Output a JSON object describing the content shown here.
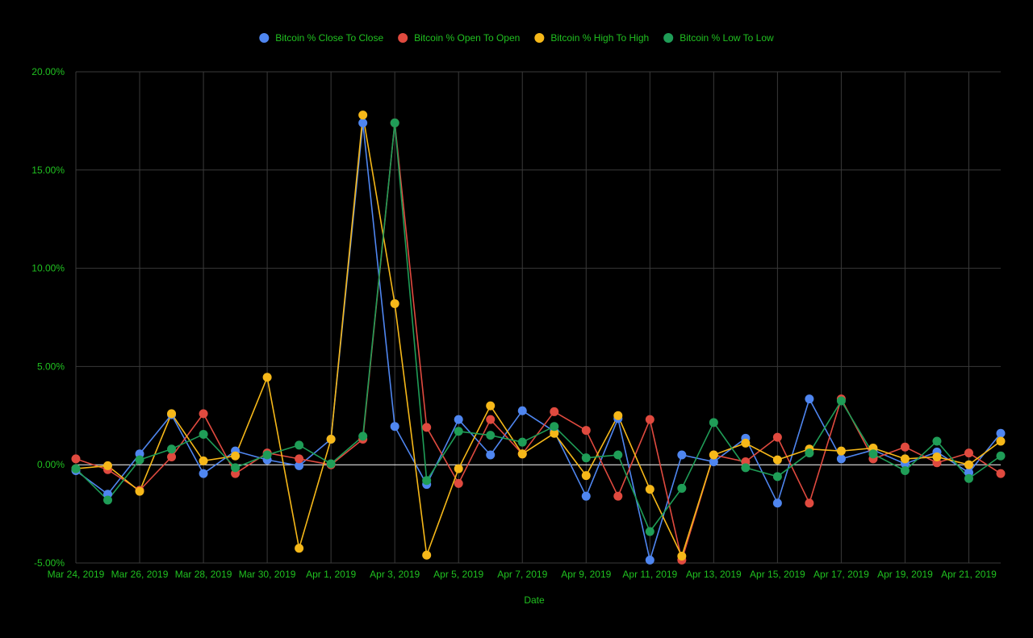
{
  "chart_data": {
    "type": "line",
    "title": "",
    "xlabel": "Date",
    "ylabel": "",
    "ylim": [
      -5,
      20
    ],
    "y_ticks": [
      {
        "value": 20,
        "label": "20.00%"
      },
      {
        "value": 15,
        "label": "15.00%"
      },
      {
        "value": 10,
        "label": "10.00%"
      },
      {
        "value": 5,
        "label": "5.00%"
      },
      {
        "value": 0,
        "label": "0.00%"
      },
      {
        "value": -5,
        "label": "-5.00%"
      }
    ],
    "x": [
      "Mar 24, 2019",
      "Mar 25, 2019",
      "Mar 26, 2019",
      "Mar 27, 2019",
      "Mar 28, 2019",
      "Mar 29, 2019",
      "Mar 30, 2019",
      "Mar 31, 2019",
      "Apr 1, 2019",
      "Apr 2, 2019",
      "Apr 3, 2019",
      "Apr 4, 2019",
      "Apr 5, 2019",
      "Apr 6, 2019",
      "Apr 7, 2019",
      "Apr 8, 2019",
      "Apr 9, 2019",
      "Apr 10, 2019",
      "Apr 11, 2019",
      "Apr 12, 2019",
      "Apr 13, 2019",
      "Apr 14, 2019",
      "Apr 15, 2019",
      "Apr 16, 2019",
      "Apr 17, 2019",
      "Apr 18, 2019",
      "Apr 19, 2019",
      "Apr 20, 2019",
      "Apr 21, 2019",
      "Apr 22, 2019"
    ],
    "x_tick_labels": [
      "Mar 24, 2019",
      "Mar 26, 2019",
      "Mar 28, 2019",
      "Mar 30, 2019",
      "Apr 1, 2019",
      "Apr 3, 2019",
      "Apr 5, 2019",
      "Apr 7, 2019",
      "Apr 9, 2019",
      "Apr 11, 2019",
      "Apr 13, 2019",
      "Apr 15, 2019",
      "Apr 17, 2019",
      "Apr 19, 2019",
      "Apr 21, 2019"
    ],
    "grid": true,
    "legend_position": "top",
    "series": [
      {
        "name": "Bitcoin % Close To Close",
        "color": "#4f86f0",
        "values": [
          -0.3,
          -1.5,
          0.55,
          2.55,
          -0.45,
          0.7,
          0.25,
          -0.05,
          1.3,
          17.4,
          1.95,
          -1.0,
          2.3,
          0.5,
          2.75,
          1.7,
          -1.6,
          2.35,
          -4.85,
          0.5,
          0.15,
          1.35,
          -1.95,
          3.35,
          0.3,
          0.75,
          0.05,
          0.65,
          -0.4,
          1.6
        ]
      },
      {
        "name": "Bitcoin % Open To Open",
        "color": "#e04a3f",
        "values": [
          0.3,
          -0.25,
          -1.3,
          0.4,
          2.6,
          -0.45,
          0.6,
          0.3,
          0.0,
          1.3,
          17.4,
          1.9,
          -0.95,
          2.3,
          0.55,
          2.7,
          1.75,
          -1.6,
          2.3,
          -4.85,
          0.5,
          0.15,
          1.4,
          -1.95,
          3.35,
          0.3,
          0.9,
          0.1,
          0.6,
          -0.45
        ]
      },
      {
        "name": "Bitcoin % High To High",
        "color": "#f6b819",
        "values": [
          -0.2,
          -0.05,
          -1.35,
          2.6,
          0.2,
          0.45,
          4.45,
          -4.25,
          1.3,
          17.8,
          8.2,
          -4.6,
          -0.2,
          3.0,
          0.55,
          1.6,
          -0.55,
          2.5,
          -1.25,
          -4.65,
          0.5,
          1.1,
          0.25,
          0.8,
          0.7,
          0.85,
          0.3,
          0.4,
          0.0,
          1.2
        ]
      },
      {
        "name": "Bitcoin % Low To Low",
        "color": "#1f9d57",
        "values": [
          -0.2,
          -1.8,
          0.25,
          0.8,
          1.55,
          -0.15,
          0.5,
          1.0,
          0.05,
          1.45,
          17.4,
          -0.8,
          1.7,
          1.5,
          1.15,
          1.95,
          0.35,
          0.5,
          -3.4,
          -1.2,
          2.15,
          -0.15,
          -0.6,
          0.6,
          3.25,
          0.55,
          -0.3,
          1.2,
          -0.7,
          0.45
        ]
      }
    ]
  }
}
